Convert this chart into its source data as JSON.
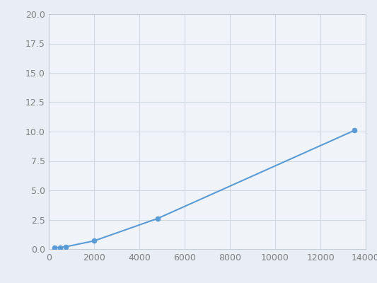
{
  "x": [
    250,
    500,
    750,
    2000,
    4800,
    13500
  ],
  "y": [
    0.1,
    0.15,
    0.2,
    0.7,
    2.6,
    10.1
  ],
  "line_color": "#5b9bd5",
  "marker_color": "#5b9bd5",
  "marker_size": 5,
  "line_width": 1.5,
  "xlim": [
    0,
    14000
  ],
  "ylim": [
    0,
    20.0
  ],
  "xticks": [
    0,
    2000,
    4000,
    6000,
    8000,
    10000,
    12000,
    14000
  ],
  "yticks": [
    0.0,
    2.5,
    5.0,
    7.5,
    10.0,
    12.5,
    15.0,
    17.5,
    20.0
  ],
  "xtick_labels": [
    "0",
    "2000",
    "4000",
    "6000",
    "8000",
    "10000",
    "12000",
    "14000"
  ],
  "ytick_labels": [
    "0.0",
    "2.5",
    "5.0",
    "7.5",
    "10.0",
    "12.5",
    "15.0",
    "17.5",
    "20.0"
  ],
  "background_color": "#f0f4f8",
  "plot_background_color": "#f0f4f8",
  "grid_color": "#d0d8e0",
  "tick_fontsize": 9,
  "tick_color": "#808080",
  "spine_color": "#c0c8d0",
  "fig_background": "#e8eef4"
}
